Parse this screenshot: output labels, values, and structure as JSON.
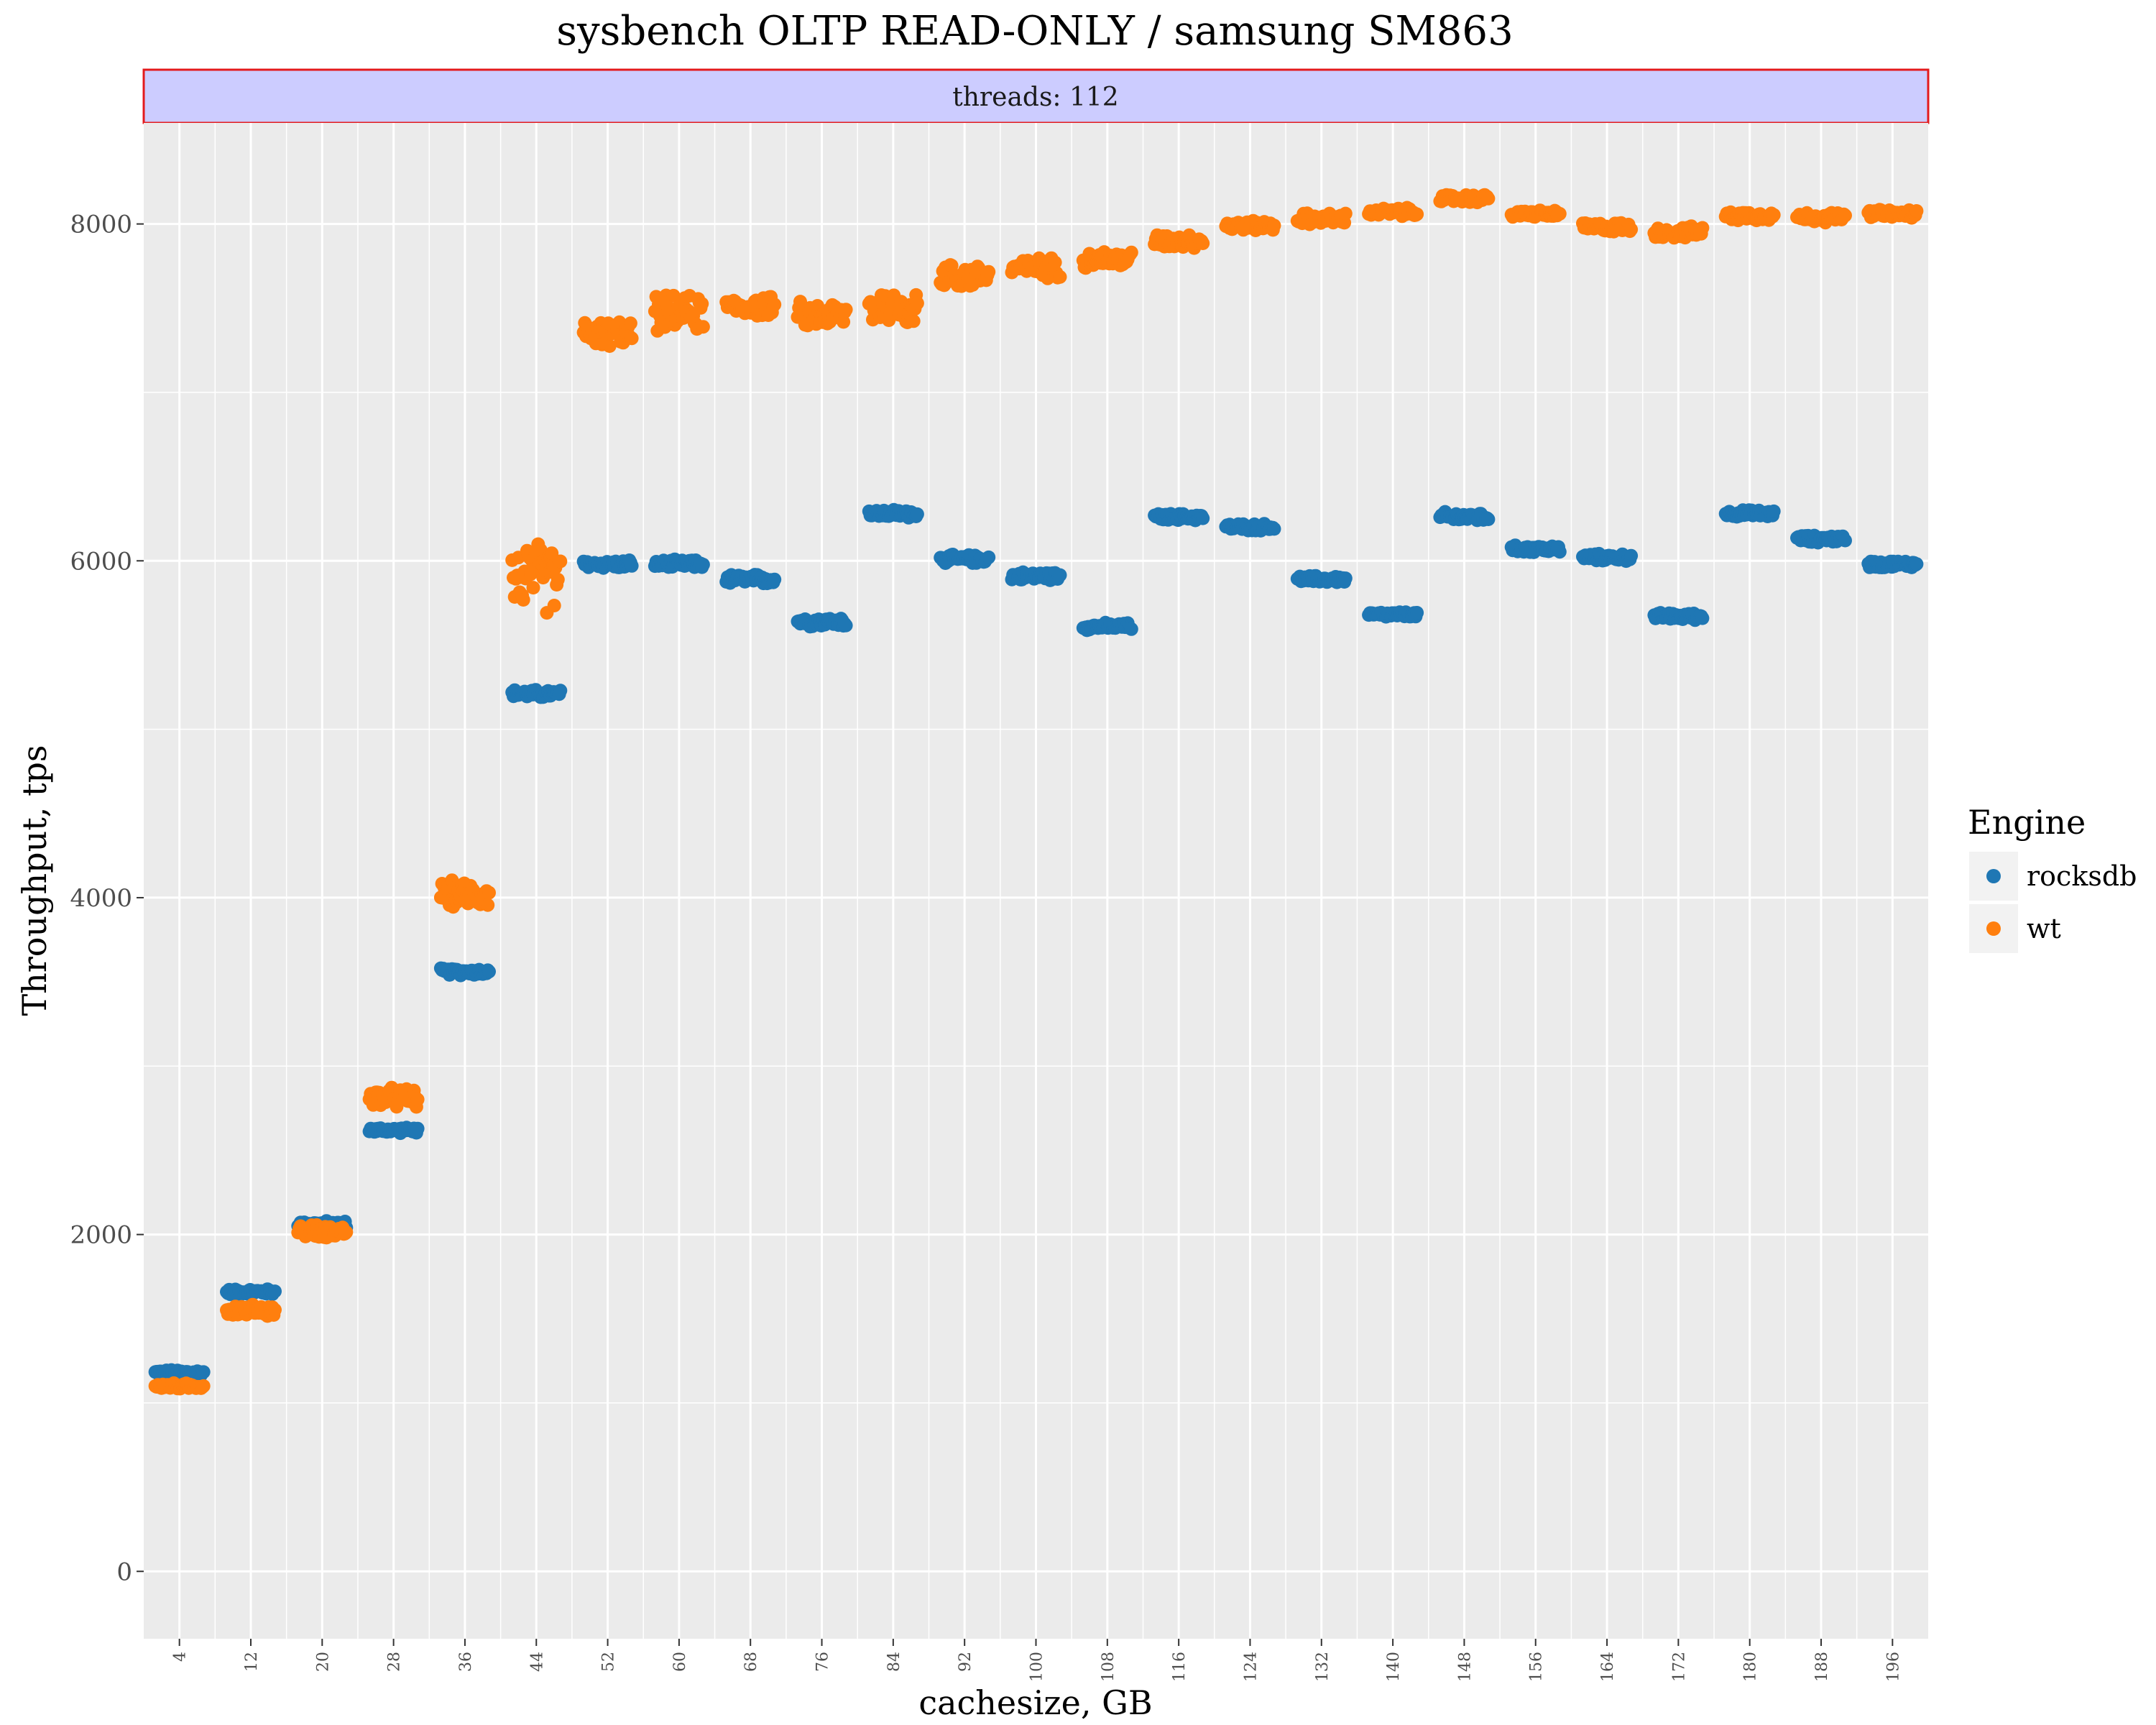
{
  "chart_data": {
    "type": "scatter",
    "title": "sysbench OLTP READ-ONLY / samsung SM863",
    "facet_label": "threads: 112",
    "xlabel": "cachesize, GB",
    "ylabel": "Throughput, tps",
    "xlim": [
      0,
      200
    ],
    "ylim": [
      -400,
      8600
    ],
    "x_ticks": [
      4,
      12,
      20,
      28,
      36,
      44,
      52,
      60,
      68,
      76,
      84,
      92,
      100,
      108,
      116,
      124,
      132,
      140,
      148,
      156,
      164,
      172,
      180,
      188,
      196
    ],
    "y_ticks": [
      0,
      2000,
      4000,
      6000,
      8000
    ],
    "y_tick_labels": [
      "0",
      "2000",
      "4000",
      "6000",
      "8000"
    ],
    "legend": {
      "title": "Engine",
      "position": "right",
      "entries": [
        {
          "name": "rocksdb",
          "color": "#1f77b4"
        },
        {
          "name": "wt",
          "color": "#ff7f0e"
        }
      ]
    },
    "series": [
      {
        "name": "rocksdb",
        "color": "#1f77b4",
        "groups": [
          {
            "x": 4,
            "y": 1180,
            "spread": 20
          },
          {
            "x": 12,
            "y": 1660,
            "spread": 20
          },
          {
            "x": 20,
            "y": 2060,
            "spread": 25
          },
          {
            "x": 28,
            "y": 2620,
            "spread": 20
          },
          {
            "x": 36,
            "y": 3560,
            "spread": 25
          },
          {
            "x": 44,
            "y": 5210,
            "spread": 30
          },
          {
            "x": 52,
            "y": 5980,
            "spread": 30
          },
          {
            "x": 60,
            "y": 5980,
            "spread": 30
          },
          {
            "x": 68,
            "y": 5890,
            "spread": 35
          },
          {
            "x": 76,
            "y": 5640,
            "spread": 35
          },
          {
            "x": 84,
            "y": 6280,
            "spread": 30
          },
          {
            "x": 92,
            "y": 6010,
            "spread": 30
          },
          {
            "x": 100,
            "y": 5910,
            "spread": 30
          },
          {
            "x": 108,
            "y": 5610,
            "spread": 25
          },
          {
            "x": 116,
            "y": 6260,
            "spread": 25
          },
          {
            "x": 124,
            "y": 6200,
            "spread": 25
          },
          {
            "x": 132,
            "y": 5890,
            "spread": 25
          },
          {
            "x": 140,
            "y": 5680,
            "spread": 20
          },
          {
            "x": 148,
            "y": 6260,
            "spread": 35
          },
          {
            "x": 156,
            "y": 6070,
            "spread": 25
          },
          {
            "x": 164,
            "y": 6020,
            "spread": 25
          },
          {
            "x": 172,
            "y": 5670,
            "spread": 25
          },
          {
            "x": 180,
            "y": 6280,
            "spread": 25
          },
          {
            "x": 188,
            "y": 6130,
            "spread": 25
          },
          {
            "x": 196,
            "y": 5980,
            "spread": 25
          }
        ]
      },
      {
        "name": "wt",
        "color": "#ff7f0e",
        "groups": [
          {
            "x": 4,
            "y": 1100,
            "spread": 20
          },
          {
            "x": 12,
            "y": 1550,
            "spread": 40
          },
          {
            "x": 20,
            "y": 2020,
            "spread": 45
          },
          {
            "x": 28,
            "y": 2810,
            "spread": 70
          },
          {
            "x": 36,
            "y": 4020,
            "spread": 90
          },
          {
            "x": 44,
            "y": 5900,
            "spread": 240
          },
          {
            "x": 52,
            "y": 7350,
            "spread": 90
          },
          {
            "x": 60,
            "y": 7470,
            "spread": 120
          },
          {
            "x": 68,
            "y": 7510,
            "spread": 70
          },
          {
            "x": 76,
            "y": 7460,
            "spread": 90
          },
          {
            "x": 84,
            "y": 7510,
            "spread": 130
          },
          {
            "x": 92,
            "y": 7690,
            "spread": 90
          },
          {
            "x": 100,
            "y": 7740,
            "spread": 70
          },
          {
            "x": 108,
            "y": 7790,
            "spread": 60
          },
          {
            "x": 116,
            "y": 7900,
            "spread": 50
          },
          {
            "x": 124,
            "y": 7990,
            "spread": 35
          },
          {
            "x": 132,
            "y": 8030,
            "spread": 40
          },
          {
            "x": 140,
            "y": 8070,
            "spread": 30
          },
          {
            "x": 148,
            "y": 8150,
            "spread": 30
          },
          {
            "x": 156,
            "y": 8060,
            "spread": 25
          },
          {
            "x": 164,
            "y": 7980,
            "spread": 35
          },
          {
            "x": 172,
            "y": 7950,
            "spread": 40
          },
          {
            "x": 180,
            "y": 8050,
            "spread": 35
          },
          {
            "x": 188,
            "y": 8040,
            "spread": 35
          },
          {
            "x": 196,
            "y": 8060,
            "spread": 30
          }
        ]
      }
    ]
  }
}
